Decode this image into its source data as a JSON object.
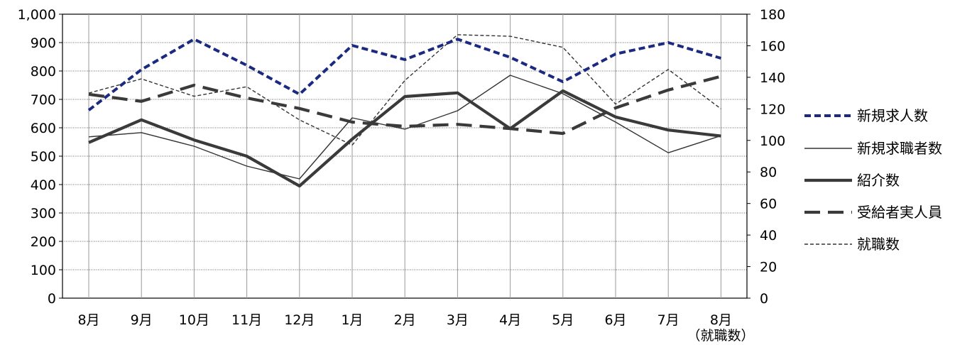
{
  "chart_data": {
    "type": "line",
    "categories": [
      "8月",
      "9月",
      "10月",
      "11月",
      "12月",
      "1月",
      "2月",
      "3月",
      "4月",
      "5月",
      "6月",
      "7月",
      "8月"
    ],
    "left_axis": {
      "ylim": [
        0,
        1000
      ],
      "ticks": [
        0,
        100,
        200,
        300,
        400,
        500,
        600,
        700,
        800,
        900,
        1000
      ],
      "tick_labels": [
        "0",
        "100",
        "200",
        "300",
        "400",
        "500",
        "600",
        "700",
        "800",
        "900",
        "1,000"
      ]
    },
    "right_axis": {
      "ylim": [
        0,
        180
      ],
      "ticks": [
        0,
        20,
        40,
        60,
        80,
        100,
        120,
        140,
        160,
        180
      ],
      "tick_labels": [
        "0",
        "20",
        "40",
        "60",
        "80",
        "100",
        "120",
        "140",
        "160",
        "180"
      ],
      "label": "（就職数）"
    },
    "grid": true,
    "legend_position": "right",
    "series": [
      {
        "name": "新規求人数",
        "axis": "left",
        "style": "dashed-thick",
        "color": "#1b2a80",
        "values": [
          662,
          805,
          912,
          820,
          718,
          890,
          840,
          912,
          848,
          762,
          860,
          900,
          845
        ]
      },
      {
        "name": "新規求職者数",
        "axis": "left",
        "style": "solid-thin",
        "color": "#333333",
        "values": [
          568,
          583,
          535,
          465,
          420,
          635,
          595,
          660,
          785,
          720,
          620,
          512,
          572
        ]
      },
      {
        "name": "紹介数",
        "axis": "left",
        "style": "solid-thick",
        "color": "#3a3a3a",
        "values": [
          548,
          628,
          557,
          500,
          395,
          560,
          710,
          723,
          597,
          730,
          638,
          592,
          571
        ]
      },
      {
        "name": "受給者実人員",
        "axis": "left",
        "style": "longdash-thick",
        "color": "#3a3a3a",
        "values": [
          718,
          693,
          750,
          705,
          668,
          620,
          605,
          612,
          597,
          580,
          670,
          733,
          781
        ]
      },
      {
        "name": "就職数",
        "axis": "right",
        "style": "dashed-thin",
        "color": "#333333",
        "values": [
          130,
          139,
          128,
          134,
          113,
          97,
          138,
          167,
          166,
          159,
          123,
          145,
          120
        ]
      }
    ]
  }
}
